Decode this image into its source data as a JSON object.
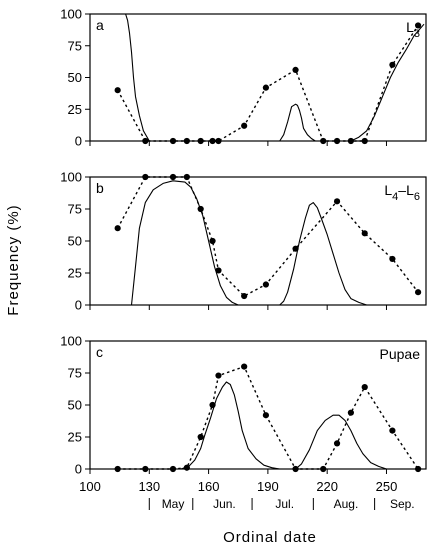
{
  "chart_data": {
    "type": "line",
    "xlabel": "Ordinal date",
    "ylabel": "Frequency (%)",
    "xlim": [
      100,
      270
    ],
    "ylim": [
      0,
      100
    ],
    "x_ticks": [
      100,
      130,
      160,
      190,
      220,
      250
    ],
    "y_ticks": [
      0,
      25,
      50,
      75,
      100
    ],
    "grid": false,
    "month_labels": [
      {
        "label": "May",
        "start": 130,
        "end": 152
      },
      {
        "label": "Jun.",
        "start": 152,
        "end": 182
      },
      {
        "label": "Jul.",
        "start": 182,
        "end": 213
      },
      {
        "label": "Aug.",
        "start": 213,
        "end": 244
      },
      {
        "label": "Sep.",
        "start": 244,
        "end": 270
      }
    ],
    "panels": [
      {
        "letter": "a",
        "label_main": "L",
        "label_sub": "3",
        "label_mid": "",
        "label_main2": "",
        "label_sub2": "",
        "series": [
          {
            "style": "solid",
            "x": [
              112,
              118,
              119,
              120,
              121,
              122,
              123,
              125,
              127,
              130,
              150,
              196,
              198,
              200,
              202,
              204,
              205,
              206,
              207,
              208,
              210,
              212,
              214,
              216,
              232,
              236,
              240,
              244,
              248,
              252,
              256,
              260,
              264,
              269
            ],
            "y": [
              100,
              100,
              95,
              85,
              70,
              50,
              35,
              20,
              8,
              0,
              0,
              0,
              5,
              15,
              27,
              29,
              28,
              24,
              18,
              10,
              5,
              2,
              0,
              0,
              0,
              3,
              8,
              20,
              35,
              50,
              62,
              72,
              83,
              92
            ]
          },
          {
            "style": "dotted",
            "x": [
              114,
              128,
              142,
              149,
              156,
              162,
              165,
              178,
              189,
              204,
              218,
              225,
              232,
              239,
              253,
              266
            ],
            "y": [
              40,
              0,
              0,
              0,
              0,
              0,
              0,
              12,
              42,
              56,
              0,
              0,
              0,
              0,
              60,
              91
            ]
          }
        ]
      },
      {
        "letter": "b",
        "label_main": "L",
        "label_sub": "4",
        "label_mid": "–",
        "label_main2": "L",
        "label_sub2": "6",
        "series": [
          {
            "style": "solid",
            "x": [
              121,
              123,
              125,
              128,
              132,
              137,
              142,
              148,
              151,
              154,
              157,
              160,
              163,
              166,
              169,
              172,
              175,
              178,
              181,
              184,
              186,
              190,
              196,
              198,
              200,
              203,
              206,
              209,
              211,
              213,
              215,
              217,
              220,
              223,
              226,
              229,
              232,
              236,
              240,
              245
            ],
            "y": [
              0,
              30,
              60,
              80,
              90,
              95,
              97,
              96,
              92,
              83,
              70,
              50,
              30,
              15,
              6,
              2,
              0,
              0,
              0,
              0,
              0,
              0,
              0,
              3,
              10,
              28,
              50,
              68,
              78,
              80,
              76,
              68,
              55,
              40,
              25,
              12,
              5,
              2,
              0,
              0
            ]
          },
          {
            "style": "dotted",
            "x": [
              114,
              128,
              142,
              149,
              156,
              162,
              165,
              178,
              189,
              204,
              225,
              239,
              253,
              266
            ],
            "y": [
              60,
              100,
              100,
              100,
              75,
              50,
              27,
              7,
              16,
              44,
              81,
              56,
              36,
              10
            ]
          }
        ]
      },
      {
        "letter": "c",
        "label_main": "Pupae",
        "label_sub": "",
        "label_mid": "",
        "label_main2": "",
        "label_sub2": "",
        "series": [
          {
            "style": "solid",
            "x": [
              146,
              150,
              153,
              156,
              158,
              161,
              164,
              167,
              169,
              171,
              173,
              175,
              177,
              180,
              184,
              188,
              192,
              196,
              200,
              204,
              207,
              211,
              215,
              219,
              223,
              226,
              229,
              232,
              235,
              238,
              242,
              246,
              250,
              254
            ],
            "y": [
              0,
              2,
              7,
              16,
              26,
              40,
              55,
              64,
              68,
              66,
              58,
              45,
              30,
              16,
              8,
              3,
              1,
              0,
              0,
              0,
              4,
              15,
              30,
              38,
              42,
              42,
              38,
              30,
              20,
              12,
              5,
              2,
              0,
              0
            ]
          },
          {
            "style": "dotted",
            "x": [
              114,
              128,
              142,
              149,
              156,
              162,
              165,
              178,
              189,
              204,
              218,
              225,
              232,
              239,
              253,
              266
            ],
            "y": [
              0,
              0,
              0,
              1,
              25,
              50,
              73,
              80,
              42,
              0,
              0,
              20,
              44,
              64,
              30,
              0
            ]
          }
        ]
      }
    ]
  }
}
